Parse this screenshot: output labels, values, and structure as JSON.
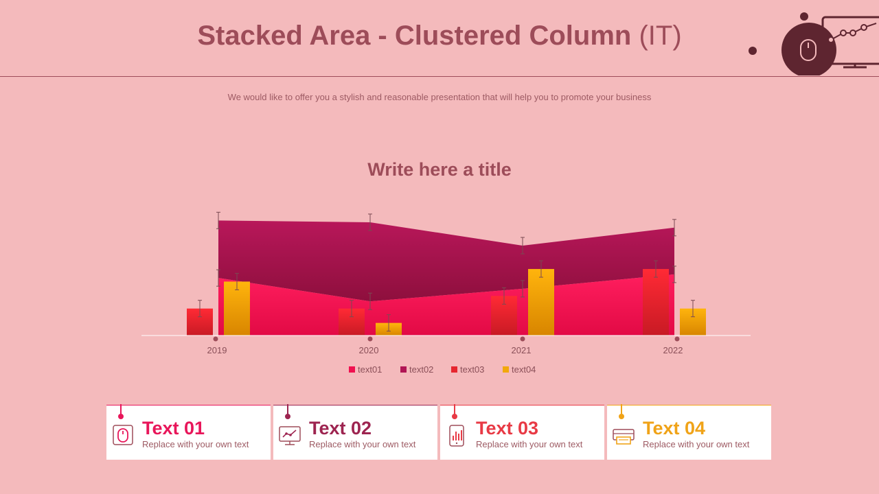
{
  "header": {
    "title_main": "Stacked Area - Clustered Column",
    "title_suffix": "(IT)",
    "subtitle": "We would like to offer you a stylish and reasonable presentation that will help you to promote your business"
  },
  "chart_data": {
    "type": "area+bar",
    "title": "Write here a title",
    "categories": [
      "2019",
      "2020",
      "2021",
      "2022"
    ],
    "ylim": [
      0,
      100
    ],
    "grid": false,
    "legend_position": "bottom",
    "area_series": [
      {
        "name": "text01",
        "values": [
          32,
          19,
          26,
          34
        ],
        "color": "#f0104f"
      },
      {
        "name": "text02",
        "values": [
          32,
          44,
          24,
          26
        ],
        "color": "#b01554"
      }
    ],
    "bar_series": [
      {
        "name": "text03",
        "values": [
          15,
          15,
          22,
          37
        ],
        "color": "#e6262f"
      },
      {
        "name": "text04",
        "values": [
          30,
          7,
          37,
          15
        ],
        "color": "#f2a80c"
      }
    ]
  },
  "cards": [
    {
      "title": "Text 01",
      "text": "Replace with your own text",
      "color": "#e8165a",
      "icon": "mouse-icon"
    },
    {
      "title": "Text 02",
      "text": "Replace with your own text",
      "color": "#9d2450",
      "icon": "monitor-chart-icon"
    },
    {
      "title": "Text 03",
      "text": "Replace with your own text",
      "color": "#e83a45",
      "icon": "phone-bar-chart-icon"
    },
    {
      "title": "Text 04",
      "text": "Replace with your own text",
      "color": "#f0a318",
      "icon": "printer-icon"
    }
  ],
  "theme": {
    "accent_dark": "#9d4c59",
    "background": "#f4babc"
  }
}
